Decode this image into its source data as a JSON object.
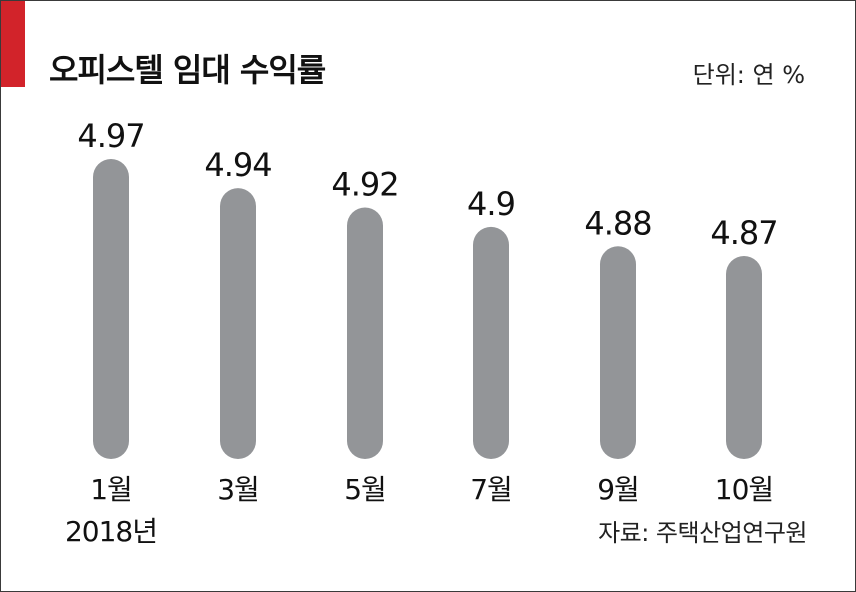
{
  "header": {
    "title": "오피스텔 임대 수익률",
    "unit": "단위: 연 %"
  },
  "footer": {
    "source": "자료: 주택산업연구원"
  },
  "colors": {
    "accent": "#d2232a",
    "bar": "#939598",
    "text": "#111111"
  },
  "chart_data": {
    "type": "bar",
    "title": "오피스텔 임대 수익률",
    "categories": [
      "1월",
      "3월",
      "5월",
      "7월",
      "9월",
      "10월"
    ],
    "category_sublabels": [
      "2018년",
      "",
      "",
      "",
      "",
      ""
    ],
    "values": [
      4.97,
      4.94,
      4.92,
      4.9,
      4.88,
      4.87
    ],
    "value_labels": [
      "4.97",
      "4.94",
      "4.92",
      "4.9",
      "4.88",
      "4.87"
    ],
    "xlabel": "",
    "ylabel": "",
    "grid": false,
    "legend": "none"
  }
}
